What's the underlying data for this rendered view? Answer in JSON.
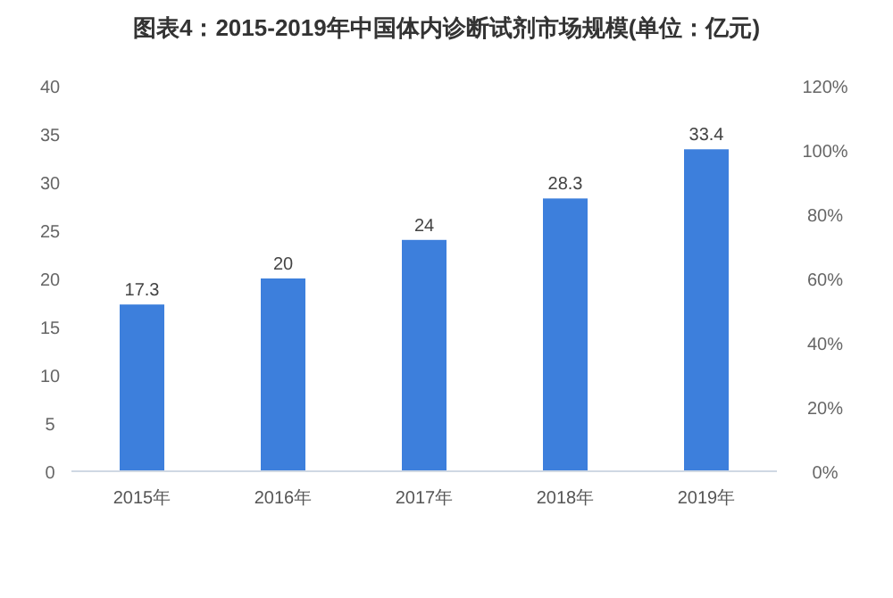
{
  "chart_data": {
    "type": "bar",
    "title": "图表4：2015-2019年中国体内诊断试剂市场规模(单位：亿元)",
    "categories": [
      "2015年",
      "2016年",
      "2017年",
      "2018年",
      "2019年"
    ],
    "series": [
      {
        "color": "#3d7fdc",
        "values": [
          17.3,
          20,
          24,
          28.3,
          33.4
        ]
      }
    ],
    "data_labels": true,
    "ylim": [
      0,
      40
    ],
    "yticks": [
      0,
      5,
      10,
      15,
      20,
      25,
      30,
      35,
      40
    ],
    "y2lim": [
      0,
      120
    ],
    "y2ticks": [
      {
        "value": 0,
        "label": "0%"
      },
      {
        "value": 20,
        "label": "20%"
      },
      {
        "value": 40,
        "label": "40%"
      },
      {
        "value": 60,
        "label": "60%"
      },
      {
        "value": 80,
        "label": "80%"
      },
      {
        "value": 100,
        "label": "100%"
      },
      {
        "value": 120,
        "label": "120%"
      }
    ],
    "grid": false
  }
}
